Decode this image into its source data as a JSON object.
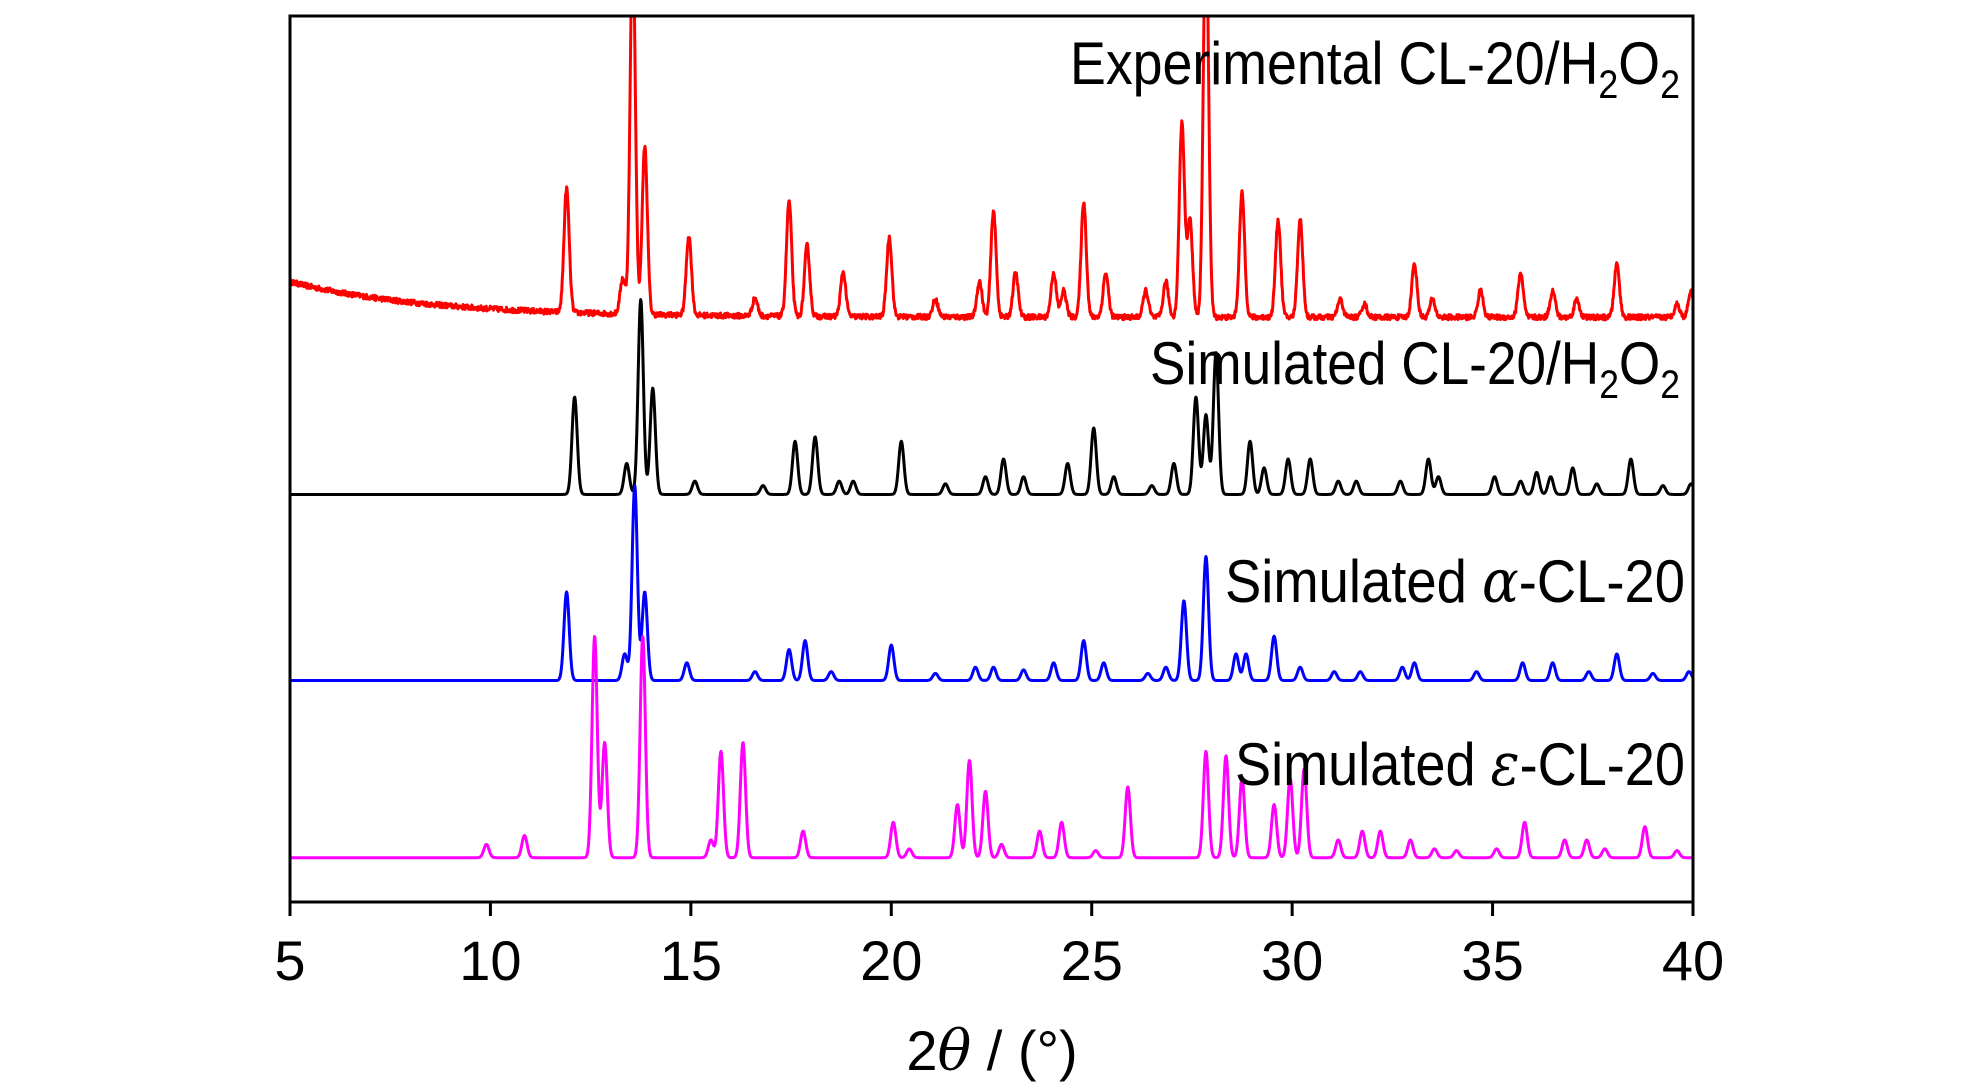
{
  "chart_data": {
    "type": "line",
    "title": "",
    "xlabel_prefix": "2",
    "xlabel_symbol": "θ",
    "xlabel_suffix": " / (°)",
    "ylabel": "",
    "xlim": [
      5,
      40
    ],
    "ylim": [
      0,
      100
    ],
    "xticks": [
      5,
      10,
      15,
      20,
      25,
      30,
      35,
      40
    ],
    "xtick_labels": [
      "5",
      "10",
      "15",
      "20",
      "25",
      "30",
      "35",
      "40"
    ],
    "y_ticks_shown": false,
    "legend": "inline text labels above each trace",
    "series": [
      {
        "key": "exp",
        "label_main": "Experimental CL-20/H",
        "label_sub1": "2",
        "label_mid": "O",
        "label_sub2": "2",
        "color": "#ff0000",
        "baseline": 66,
        "noise": 0.6,
        "start_offset": 4,
        "peaks": [
          [
            11.9,
            14
          ],
          [
            13.3,
            4
          ],
          [
            13.55,
            42
          ],
          [
            13.85,
            19
          ],
          [
            14.95,
            9
          ],
          [
            16.6,
            2
          ],
          [
            17.45,
            13
          ],
          [
            17.9,
            8
          ],
          [
            18.8,
            5
          ],
          [
            19.95,
            9
          ],
          [
            21.1,
            2
          ],
          [
            22.2,
            4
          ],
          [
            22.55,
            12
          ],
          [
            23.1,
            5
          ],
          [
            24.05,
            5
          ],
          [
            24.3,
            3
          ],
          [
            24.8,
            13
          ],
          [
            25.35,
            5
          ],
          [
            26.35,
            3
          ],
          [
            26.85,
            4
          ],
          [
            27.25,
            22
          ],
          [
            27.45,
            11
          ],
          [
            27.85,
            46
          ],
          [
            28.75,
            14
          ],
          [
            29.65,
            11
          ],
          [
            30.2,
            11
          ],
          [
            31.2,
            2
          ],
          [
            31.8,
            1.5
          ],
          [
            33.05,
            6
          ],
          [
            33.5,
            2
          ],
          [
            34.7,
            3
          ],
          [
            35.7,
            5
          ],
          [
            36.5,
            3
          ],
          [
            37.1,
            2
          ],
          [
            38.1,
            6
          ],
          [
            39.6,
            1.5
          ],
          [
            39.95,
            3
          ]
        ]
      },
      {
        "key": "simh2o2",
        "label_main": "Simulated CL-20/H",
        "label_sub1": "2",
        "label_mid": "O",
        "label_sub2": "2",
        "color": "#000000",
        "baseline": 46,
        "noise": 0,
        "start_offset": 0,
        "peaks": [
          [
            12.1,
            11
          ],
          [
            13.4,
            3.5
          ],
          [
            13.75,
            22
          ],
          [
            14.05,
            12
          ],
          [
            15.1,
            1.5
          ],
          [
            16.8,
            1
          ],
          [
            17.6,
            6
          ],
          [
            18.1,
            6.5
          ],
          [
            18.7,
            1.5
          ],
          [
            19.05,
            1.5
          ],
          [
            20.25,
            6
          ],
          [
            21.35,
            1.2
          ],
          [
            22.35,
            2
          ],
          [
            22.8,
            4
          ],
          [
            23.3,
            2
          ],
          [
            24.4,
            3.5
          ],
          [
            25.05,
            7.5
          ],
          [
            25.55,
            2
          ],
          [
            26.5,
            1
          ],
          [
            27.05,
            3.5
          ],
          [
            27.6,
            11
          ],
          [
            27.85,
            9
          ],
          [
            28.1,
            16
          ],
          [
            28.95,
            6
          ],
          [
            29.3,
            3
          ],
          [
            29.9,
            4
          ],
          [
            30.45,
            4
          ],
          [
            31.15,
            1.5
          ],
          [
            31.6,
            1.5
          ],
          [
            32.7,
            1.5
          ],
          [
            33.4,
            4
          ],
          [
            33.65,
            2
          ],
          [
            35.05,
            2
          ],
          [
            35.7,
            1.5
          ],
          [
            36.1,
            2.5
          ],
          [
            36.45,
            2
          ],
          [
            37.0,
            3
          ],
          [
            37.6,
            1.2
          ],
          [
            38.45,
            4
          ],
          [
            39.25,
            1
          ],
          [
            39.95,
            1.2
          ]
        ]
      },
      {
        "key": "alpha",
        "label_main": "Simulated ",
        "label_greek": "α",
        "label_end": "-CL-20",
        "color": "#0000ff",
        "baseline": 25,
        "noise": 0,
        "start_offset": 0,
        "peaks": [
          [
            11.9,
            10
          ],
          [
            13.35,
            3
          ],
          [
            13.6,
            22
          ],
          [
            13.85,
            10
          ],
          [
            14.9,
            2
          ],
          [
            16.6,
            1
          ],
          [
            17.45,
            3.5
          ],
          [
            17.85,
            4.5
          ],
          [
            18.5,
            1
          ],
          [
            20.0,
            4
          ],
          [
            21.1,
            0.8
          ],
          [
            22.1,
            1.5
          ],
          [
            22.55,
            1.5
          ],
          [
            23.3,
            1.2
          ],
          [
            24.05,
            2
          ],
          [
            24.8,
            4.5
          ],
          [
            25.3,
            2
          ],
          [
            26.4,
            0.8
          ],
          [
            26.85,
            1.5
          ],
          [
            27.3,
            9
          ],
          [
            27.85,
            14
          ],
          [
            28.6,
            3
          ],
          [
            28.85,
            3
          ],
          [
            29.55,
            5
          ],
          [
            30.2,
            1.5
          ],
          [
            31.05,
            1
          ],
          [
            31.7,
            1
          ],
          [
            32.75,
            1.5
          ],
          [
            33.05,
            2
          ],
          [
            34.6,
            1
          ],
          [
            35.75,
            2
          ],
          [
            36.5,
            2
          ],
          [
            37.4,
            1
          ],
          [
            38.1,
            3
          ],
          [
            39.0,
            0.8
          ],
          [
            39.9,
            1
          ]
        ]
      },
      {
        "key": "epsilon",
        "label_main": "Simulated ",
        "label_greek": "ε",
        "label_end": "-CL-20",
        "color": "#ff00ff",
        "baseline": 5,
        "noise": 0,
        "start_offset": 0,
        "peaks": [
          [
            9.9,
            1.5
          ],
          [
            10.85,
            2.5
          ],
          [
            12.6,
            25
          ],
          [
            12.85,
            13
          ],
          [
            13.8,
            25
          ],
          [
            15.5,
            2
          ],
          [
            15.75,
            12
          ],
          [
            16.3,
            13
          ],
          [
            17.8,
            3
          ],
          [
            20.05,
            4
          ],
          [
            20.45,
            1
          ],
          [
            21.65,
            6
          ],
          [
            21.95,
            11
          ],
          [
            22.35,
            7.5
          ],
          [
            22.75,
            1.5
          ],
          [
            23.7,
            3
          ],
          [
            24.25,
            4
          ],
          [
            25.1,
            0.8
          ],
          [
            25.9,
            8
          ],
          [
            27.85,
            12
          ],
          [
            28.35,
            11.5
          ],
          [
            28.75,
            9
          ],
          [
            29.55,
            6
          ],
          [
            29.95,
            9
          ],
          [
            30.3,
            10
          ],
          [
            31.15,
            2
          ],
          [
            31.75,
            3
          ],
          [
            32.2,
            3
          ],
          [
            32.95,
            2
          ],
          [
            33.55,
            1
          ],
          [
            34.1,
            0.8
          ],
          [
            35.1,
            1
          ],
          [
            35.8,
            4
          ],
          [
            36.8,
            2
          ],
          [
            37.35,
            2
          ],
          [
            37.8,
            1
          ],
          [
            38.8,
            3.5
          ],
          [
            39.6,
            0.8
          ]
        ]
      }
    ]
  }
}
